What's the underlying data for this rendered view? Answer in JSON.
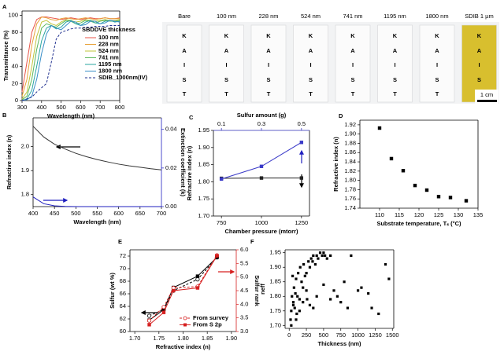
{
  "photo": {
    "labels": [
      "Bare",
      "100 nm",
      "228 nm",
      "524 nm",
      "741 nm",
      "1195 nm",
      "1800 nm",
      "SDIB 1 µm"
    ],
    "letters": [
      "K",
      "A",
      "I",
      "S",
      "T"
    ],
    "scale": "1 cm"
  },
  "chart_data": [
    {
      "type": "line",
      "panel": "A",
      "xlabel": "Wavelength (nm)",
      "ylabel": "Transmittance (%)",
      "legend_title": "SBDDVE thickness",
      "legend": "center right",
      "x": [
        300,
        325,
        350,
        375,
        400,
        425,
        450,
        475,
        500,
        525,
        550,
        575,
        600,
        625,
        650,
        675,
        700,
        725,
        750,
        775,
        800
      ],
      "xlim": [
        300,
        800
      ],
      "xticks": [
        300,
        400,
        500,
        600,
        700,
        800
      ],
      "ylim": [
        0,
        105
      ],
      "yticks": [
        0,
        20,
        40,
        60,
        80,
        100
      ],
      "series": [
        {
          "name": "100 nm",
          "color": "#e8554a",
          "values": [
            10,
            45,
            80,
            95,
            98,
            98,
            97,
            96,
            95,
            96,
            97,
            96,
            95,
            96,
            97,
            96,
            96,
            97,
            96,
            96,
            97
          ]
        },
        {
          "name": "228 nm",
          "color": "#e8a23a",
          "values": [
            5,
            25,
            65,
            90,
            98,
            97,
            95,
            94,
            96,
            97,
            96,
            95,
            96,
            97,
            96,
            95,
            96,
            97,
            96,
            96,
            96
          ]
        },
        {
          "name": "524 nm",
          "color": "#c2c43a",
          "values": [
            2,
            10,
            40,
            75,
            92,
            94,
            90,
            88,
            92,
            95,
            94,
            92,
            93,
            95,
            94,
            93,
            94,
            95,
            94,
            94,
            95
          ]
        },
        {
          "name": "741 nm",
          "color": "#5cb85c",
          "values": [
            1,
            5,
            25,
            60,
            85,
            90,
            88,
            86,
            90,
            94,
            93,
            90,
            91,
            94,
            93,
            91,
            93,
            94,
            93,
            93,
            94
          ]
        },
        {
          "name": "1195 nm",
          "color": "#2aa5a0",
          "values": [
            0,
            2,
            12,
            40,
            70,
            85,
            88,
            84,
            86,
            92,
            94,
            90,
            88,
            92,
            94,
            91,
            90,
            93,
            94,
            92,
            93
          ]
        },
        {
          "name": "1800 nm",
          "color": "#3a8fc8",
          "values": [
            0,
            1,
            5,
            25,
            55,
            78,
            88,
            85,
            83,
            88,
            93,
            92,
            88,
            89,
            93,
            93,
            90,
            91,
            94,
            93,
            92
          ]
        },
        {
          "name": "SDIB_1000nm(IV)",
          "color": "#1f2f8f",
          "dash": true,
          "values": [
            0,
            2,
            4,
            10,
            15,
            20,
            45,
            72,
            80,
            82,
            84,
            85,
            85,
            86,
            86,
            87,
            87,
            87,
            88,
            88,
            88
          ]
        }
      ]
    },
    {
      "type": "line",
      "panel": "B",
      "xlabel": "Wavelength (nm)",
      "ylabel": "Refractive index (n)",
      "y2label": "Extinction coefficient (k)",
      "y2color": "#1f1fbf",
      "x": [
        400,
        425,
        450,
        475,
        500,
        525,
        550,
        575,
        600,
        625,
        650,
        675,
        700
      ],
      "xlim": [
        400,
        700
      ],
      "xticks": [
        400,
        450,
        500,
        550,
        600,
        650,
        700
      ],
      "ylim": [
        1.75,
        2.12
      ],
      "yticks": [
        1.8,
        1.9,
        {
          "value": 2,
          "label": "2.0"
        }
      ],
      "y2lim": [
        0,
        0.046
      ],
      "y2ticks": [
        {
          "value": 0,
          "label": "0.00"
        },
        0.02,
        0.04
      ],
      "series": [
        {
          "color": "#333333",
          "values": [
            2.085,
            2.04,
            2.01,
            1.99,
            1.972,
            1.958,
            1.946,
            1.936,
            1.927,
            1.92,
            1.914,
            1.908,
            1.903
          ]
        },
        {
          "color": "#1f1fbf",
          "axis": "y2",
          "values": [
            0.005,
            0.0015,
            0.0004,
            0.0001,
            0,
            0,
            0,
            0,
            0,
            0,
            0,
            0,
            0
          ]
        }
      ]
    },
    {
      "type": "line",
      "panel": "C",
      "xlabel": "Chamber pressure (mtorr)",
      "x2label": "Sulfur amount (g)",
      "x2color": "#2a2ab5",
      "ylabel": "Refractive index (n)",
      "xlim": [
        700,
        1300
      ],
      "xticks": [
        750,
        1000,
        1250
      ],
      "x2lim": [
        0.06,
        0.54
      ],
      "x2ticks": [
        0.1,
        0.3,
        0.5
      ],
      "ylim": [
        1.7,
        1.95
      ],
      "yticks": [
        {
          "value": 1.7,
          "label": "1.70"
        },
        1.75,
        {
          "value": 1.8,
          "label": "1.80"
        },
        1.85,
        {
          "value": 1.9,
          "label": "1.90"
        },
        1.95
      ],
      "series": [
        {
          "color": "#222222",
          "marker": "square",
          "x": [
            750,
            1000,
            1250
          ],
          "values": [
            1.81,
            1.811,
            1.811
          ]
        },
        {
          "color": "#3a3ac8",
          "marker": "square",
          "xaxis": "x2",
          "x": [
            0.1,
            0.3,
            0.5
          ],
          "values": [
            1.808,
            1.845,
            1.915
          ]
        }
      ]
    },
    {
      "type": "scatter",
      "panel": "D",
      "xlabel": "Substrate temperature, Tₛ (°C)",
      "ylabel": "Refractive index (n)",
      "xlim": [
        105,
        135
      ],
      "xticks": [
        110,
        115,
        120,
        125,
        130,
        135
      ],
      "ylim": [
        1.74,
        1.93
      ],
      "yticks": [
        1.74,
        1.76,
        1.78,
        {
          "value": 1.8,
          "label": "1.80"
        },
        1.82,
        1.84,
        1.86,
        1.88,
        {
          "value": 1.9,
          "label": "1.90"
        },
        1.92
      ],
      "series": [
        {
          "color": "#000000",
          "x": [
            110,
            113,
            116,
            119,
            122,
            125,
            128,
            132
          ],
          "values": [
            1.913,
            1.847,
            1.821,
            1.789,
            1.779,
            1.765,
            1.763,
            1.756
          ]
        }
      ]
    },
    {
      "type": "line",
      "panel": "E",
      "xlabel": "Refractive index (n)",
      "ylabel": "Sulfur (wt %)",
      "y2label": "Sulfur rank",
      "y2color": "#d62020",
      "legend": "lower right",
      "x": [
        1.73,
        1.76,
        1.78,
        1.83,
        1.87
      ],
      "xlim": [
        1.69,
        1.91
      ],
      "xticks": [
        {
          "value": 1.7,
          "label": "1.70"
        },
        1.75,
        {
          "value": 1.8,
          "label": "1.80"
        },
        1.85,
        {
          "value": 1.9,
          "label": "1.90"
        }
      ],
      "ylim": [
        60,
        73
      ],
      "yticks": [
        60,
        62,
        64,
        66,
        68,
        70,
        72
      ],
      "y2lim": [
        3,
        6
      ],
      "y2ticks": [
        {
          "value": 3,
          "label": "3.0"
        },
        3.5,
        {
          "value": 4,
          "label": "4.0"
        },
        4.5,
        {
          "value": 5,
          "label": "5.0"
        },
        5.5,
        {
          "value": 6,
          "label": "6.0"
        }
      ],
      "series": [
        {
          "color": "#000000",
          "dash": true,
          "marker": "open-circle",
          "values": [
            62.5,
            63.5,
            66.5,
            68.3,
            71.8
          ]
        },
        {
          "color": "#000000",
          "marker": "square",
          "values": [
            61.8,
            63.5,
            67.0,
            68.8,
            71.8
          ]
        },
        {
          "name": "From survey",
          "color": "#d62020",
          "dash": true,
          "marker": "open-circle",
          "axis": "y2",
          "values": [
            3.4,
            3.9,
            4.6,
            4.65,
            5.8
          ]
        },
        {
          "name": "From S 2p",
          "color": "#d62020",
          "marker": "square",
          "axis": "y2",
          "values": [
            3.25,
            3.7,
            4.5,
            4.6,
            5.78
          ]
        }
      ]
    },
    {
      "type": "scatter",
      "panel": "F",
      "xlabel": "Thickness (nm)",
      "ylabel": "neff",
      "xlim": [
        -60,
        1520
      ],
      "xticks": [
        0,
        250,
        500,
        750,
        1000,
        1250,
        1500
      ],
      "ylim": [
        1.69,
        1.96
      ],
      "yticks": [
        {
          "value": 1.7,
          "label": "1.70"
        },
        1.75,
        {
          "value": 1.8,
          "label": "1.80"
        },
        1.85,
        {
          "value": 1.9,
          "label": "1.90"
        },
        1.95
      ],
      "series": [
        {
          "color": "#000000",
          "size": 1.6,
          "x": [
            20,
            30,
            40,
            50,
            60,
            70,
            80,
            90,
            100,
            110,
            120,
            130,
            150,
            160,
            180,
            200,
            210,
            230,
            250,
            260,
            280,
            300,
            320,
            340,
            350,
            380,
            400,
            420,
            450,
            480,
            500,
            520,
            550,
            600,
            650,
            700,
            750,
            800,
            850,
            900,
            1000,
            1050,
            1150,
            1200,
            1300,
            1400,
            1450,
            30,
            60,
            100,
            150,
            200,
            250,
            300,
            350,
            400,
            500,
            600
          ],
          "values": [
            1.72,
            1.75,
            1.8,
            1.87,
            1.78,
            1.83,
            1.76,
            1.81,
            1.86,
            1.74,
            1.8,
            1.88,
            1.79,
            1.9,
            1.85,
            1.83,
            1.91,
            1.87,
            1.88,
            1.79,
            1.92,
            1.9,
            1.93,
            1.92,
            1.94,
            1.91,
            1.94,
            1.93,
            1.95,
            1.94,
            1.95,
            1.94,
            1.93,
            1.94,
            1.82,
            1.8,
            1.78,
            1.85,
            1.76,
            1.94,
            1.82,
            1.83,
            1.81,
            1.76,
            1.74,
            1.91,
            1.86,
            1.7,
            1.77,
            1.72,
            1.75,
            1.78,
            1.82,
            1.77,
            1.76,
            1.8,
            1.84,
            1.79
          ]
        }
      ]
    }
  ]
}
